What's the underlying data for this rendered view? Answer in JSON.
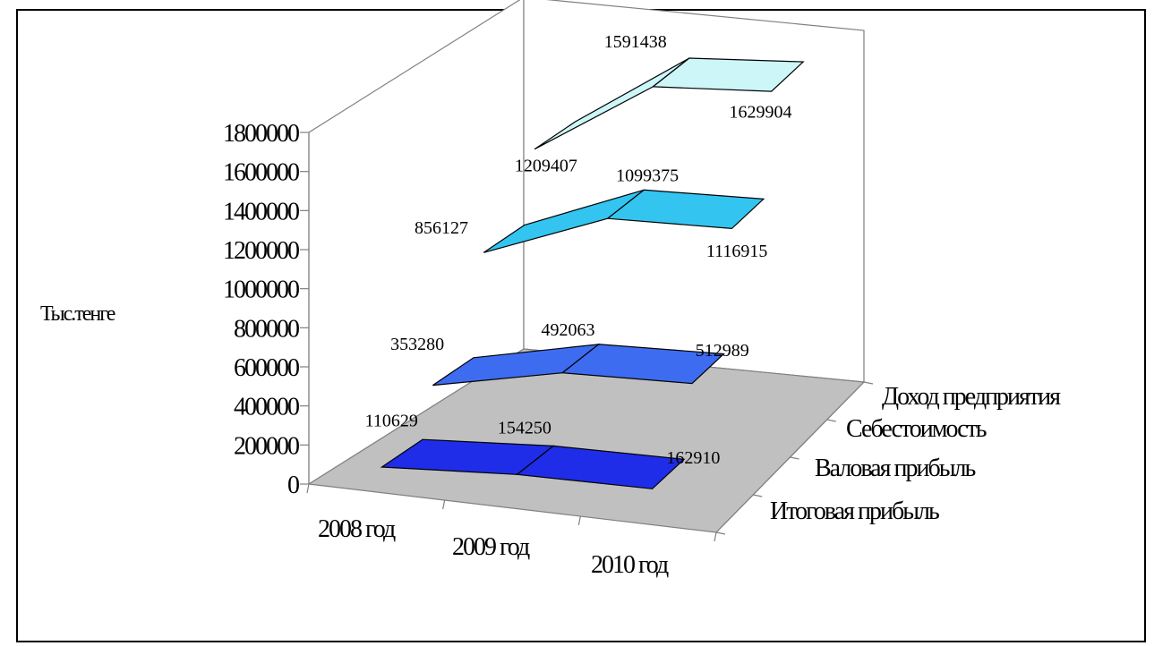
{
  "chart_data": {
    "type": "3d-line",
    "title": "",
    "ylabel": "Тыс.тенге",
    "ylim": [
      0,
      1800000
    ],
    "yticks": [
      "0",
      "200000",
      "400000",
      "600000",
      "800000",
      "1000000",
      "1200000",
      "1400000",
      "1600000",
      "1800000"
    ],
    "categories": [
      "2008 год",
      "2009 год",
      "2010 год"
    ],
    "series": [
      {
        "name": "Итоговая прибыль",
        "values": [
          110629,
          154250,
          162910
        ],
        "color": "#1f2de8"
      },
      {
        "name": "Валовая прибыль",
        "values": [
          353280,
          492063,
          512989
        ],
        "color": "#3d6cf0"
      },
      {
        "name": "Себестоимость",
        "values": [
          856127,
          1099375,
          1116915
        ],
        "color": "#33c4f0"
      },
      {
        "name": "Доход предприятия",
        "values": [
          1209407,
          1591438,
          1629904
        ],
        "color": "#ccf6f8"
      }
    ],
    "floor_color": "#c0c0c0",
    "grid": false,
    "legend": "none"
  }
}
